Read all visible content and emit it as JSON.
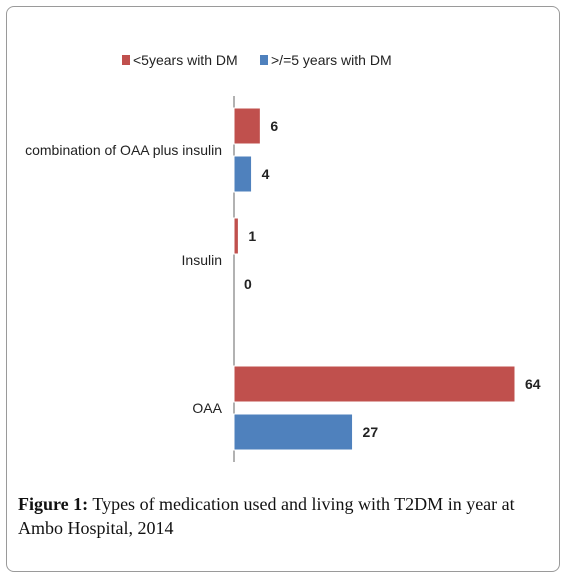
{
  "caption": {
    "label": "Figure 1:",
    "text": " Types of medication used and living with T2DM in year at Ambo Hospital, 2014"
  },
  "chart_data": {
    "type": "bar",
    "orientation": "horizontal",
    "categories": [
      "combination of OAA plus insulin",
      "Insulin",
      "OAA"
    ],
    "series": [
      {
        "name": "<5years with DM",
        "values": [
          6,
          1,
          64
        ],
        "color": "#c0504d"
      },
      {
        "name": ">/=5 years with DM",
        "values": [
          4,
          0,
          27
        ],
        "color": "#4f81bd"
      }
    ],
    "xlim": [
      0,
      64
    ],
    "legend_position": "top",
    "grid": false
  }
}
